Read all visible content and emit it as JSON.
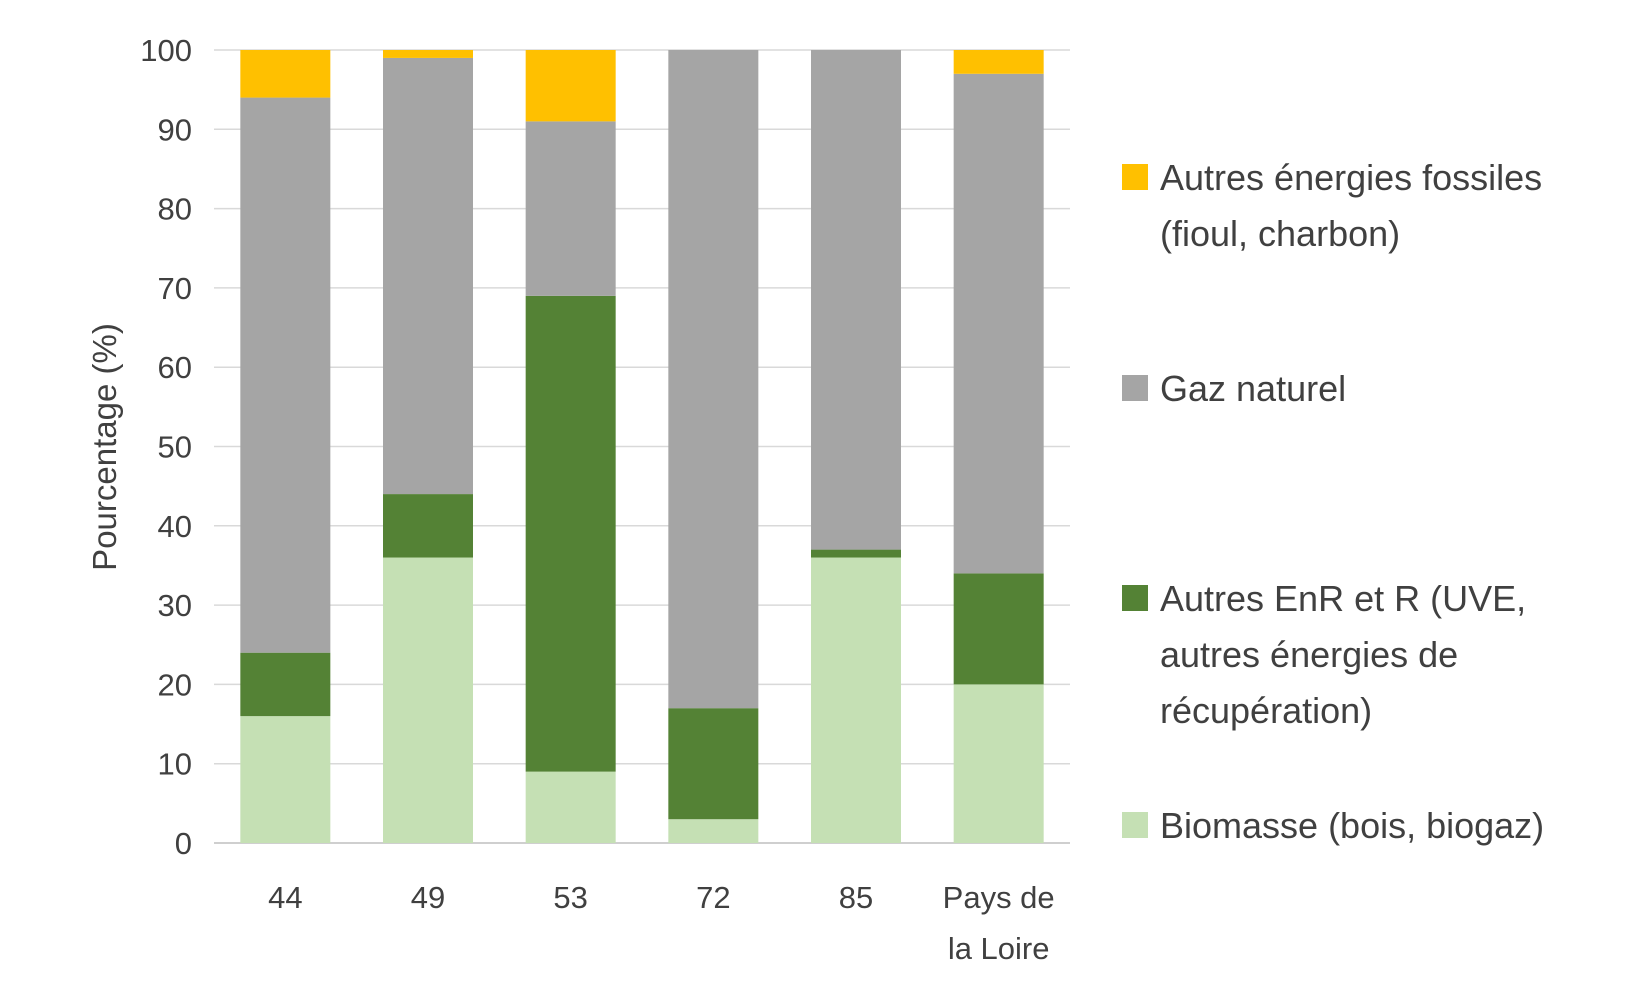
{
  "chart_data": {
    "type": "bar",
    "stacked": true,
    "categories": [
      "44",
      "49",
      "53",
      "72",
      "85",
      "Pays de la Loire"
    ],
    "category_label_lines": [
      [
        "44"
      ],
      [
        "49"
      ],
      [
        "53"
      ],
      [
        "72"
      ],
      [
        "85"
      ],
      [
        "Pays de",
        "la Loire"
      ]
    ],
    "series": [
      {
        "name": "Biomasse (bois, biogaz)",
        "color": "#c5e0b4",
        "values": [
          16,
          36,
          9,
          3,
          36,
          20
        ]
      },
      {
        "name": "Autres EnR et R (UVE, autres énergies de récupération)",
        "color": "#548235",
        "values": [
          8,
          8,
          60,
          14,
          1,
          14
        ]
      },
      {
        "name": "Gaz naturel",
        "color": "#a5a5a5",
        "values": [
          70,
          55,
          22,
          83,
          63,
          63
        ]
      },
      {
        "name": "Autres énergies fossiles (fioul, charbon)",
        "color": "#ffc000",
        "values": [
          6,
          1,
          9,
          0,
          0,
          3
        ]
      }
    ],
    "legend_lines": [
      [
        "Autres énergies fossiles",
        "(fioul, charbon)"
      ],
      [
        "Gaz naturel"
      ],
      [
        "Autres EnR et R (UVE,",
        "autres énergies de",
        "récupération)"
      ],
      [
        "Biomasse (bois, biogaz)"
      ]
    ],
    "title": "",
    "xlabel": "",
    "ylabel": "Pourcentage (%)",
    "ylim": [
      0,
      100
    ],
    "yticks": [
      0,
      10,
      20,
      30,
      40,
      50,
      60,
      70,
      80,
      90,
      100
    ],
    "grid": true,
    "legend_position": "right"
  }
}
